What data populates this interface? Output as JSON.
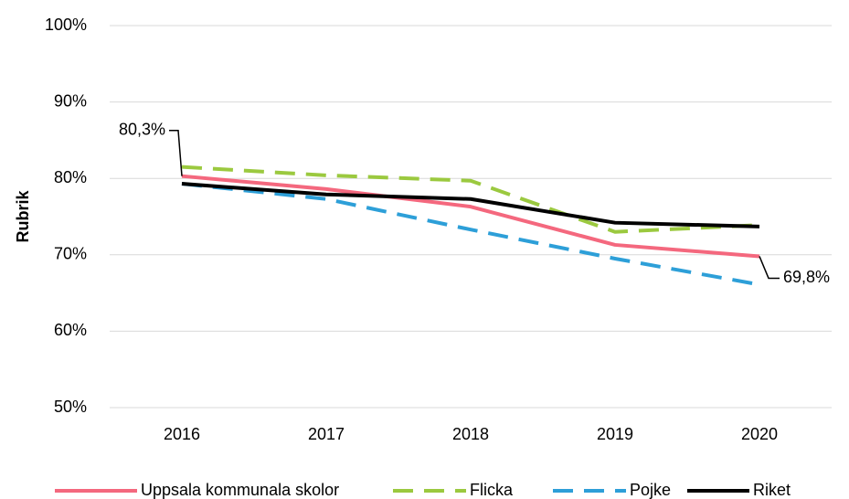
{
  "chart_data": {
    "type": "line",
    "y_label": "Rubrik",
    "categories": [
      "2016",
      "2017",
      "2018",
      "2019",
      "2020"
    ],
    "series": [
      {
        "name": "Uppsala kommunala skolor",
        "color": "#f4687e",
        "dash": false,
        "values": [
          80.3,
          78.6,
          76.3,
          71.3,
          69.8
        ],
        "value_labels": [
          "80,3%",
          null,
          null,
          null,
          "69,8%"
        ]
      },
      {
        "name": "Flicka",
        "color": "#9bc93f",
        "dash": true,
        "values": [
          81.5,
          80.4,
          79.7,
          73.0,
          73.9
        ]
      },
      {
        "name": "Pojke",
        "color": "#2d9fd8",
        "dash": true,
        "values": [
          79.3,
          77.3,
          73.3,
          69.5,
          66.1
        ]
      },
      {
        "name": "Riket",
        "color": "#000000",
        "dash": false,
        "values": [
          79.3,
          77.9,
          77.3,
          74.2,
          73.7
        ]
      }
    ],
    "ylim": [
      50,
      100
    ],
    "yticks": [
      {
        "value": 50,
        "label": "50%"
      },
      {
        "value": 60,
        "label": "60%"
      },
      {
        "value": 70,
        "label": "70%"
      },
      {
        "value": 80,
        "label": "80%"
      },
      {
        "value": 90,
        "label": "90%"
      },
      {
        "value": 100,
        "label": "100%"
      }
    ],
    "grid": true,
    "legend": "bottom"
  }
}
